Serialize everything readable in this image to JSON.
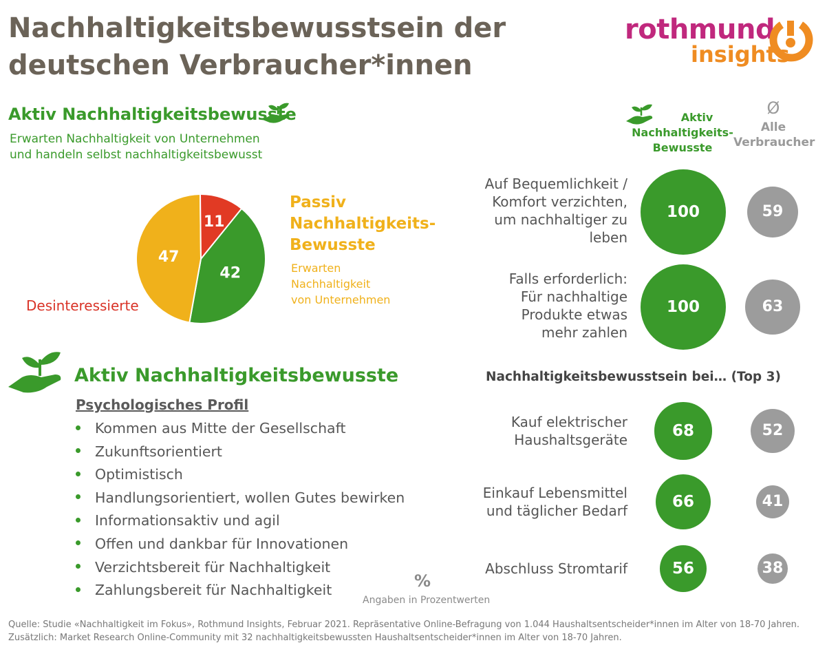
{
  "header": {
    "title_line1": "Nachhaltigkeitsbewusstsein der",
    "title_line2": "deutschen Verbraucher*innen",
    "logo_word1": "rothmund",
    "logo_word2": "insights"
  },
  "segment_active": {
    "title": "Aktiv Nachhaltigkeitsbewusste",
    "desc_line1": "Erwarten Nachhaltigkeit von Unternehmen",
    "desc_line2": "und handeln selbst nachhaltigkeitsbewusst"
  },
  "segment_passive": {
    "title_line1": "Passiv",
    "title_line2": "Nachhaltigkeits-",
    "title_line3": "Bewusste",
    "desc_line1": "Erwarten",
    "desc_line2": "Nachhaltigkeit",
    "desc_line3": "von Unternehmen"
  },
  "segment_disinterested": {
    "title": "Desinteressierte"
  },
  "profile": {
    "title": "Aktiv Nachhaltigkeitsbewusste",
    "subtitle": "Psychologisches Profil",
    "items": [
      "Kommen aus Mitte der Gesellschaft",
      "Zukunftsorientiert",
      "Optimistisch",
      "Handlungsorientiert, wollen Gutes bewirken",
      "Informationsaktiv und agil",
      "Offen und dankbar für Innovationen",
      "Verzichtsbereit für Nachhaltigkeit",
      "Zahlungsbereit für Nachhaltigkeit"
    ]
  },
  "columns": {
    "active_line1": "Aktiv",
    "active_line2": "Nachhaltigkeits-",
    "active_line3": "Bewusste",
    "all_symbol": "Ø",
    "all_line1": "Alle",
    "all_line2": "Verbraucher"
  },
  "top3_title": "Nachhaltigkeitsbewusstsein bei… (Top 3)",
  "units": {
    "symbol": "%",
    "note": "Angaben in Prozentwerten"
  },
  "source": {
    "line1": "Quelle: Studie «Nachhaltigkeit im Fokus», Rothmund Insights, Februar 2021. Repräsentative Online-Befragung von 1.044 Haushaltsentscheider*innen im Alter von 18-70 Jahren.",
    "line2": "Zusätzlich: Market Research Online-Community mit 32 nachhaltigkeitsbewussten Haushaltsentscheider*innen im Alter von 18-70 Jahren."
  },
  "colors": {
    "green": "#3a9a2b",
    "amber": "#f0b11b",
    "red": "#e13a24",
    "grey": "#9c9c9c",
    "title": "#6b6358"
  },
  "chart_data": [
    {
      "type": "pie",
      "categories": [
        "Aktiv Nachhaltigkeitsbewusste",
        "Passiv Nachhaltigkeits-Bewusste",
        "Desinteressierte"
      ],
      "values": [
        42,
        47,
        11
      ],
      "labels": [
        "42",
        "47",
        "11"
      ]
    },
    {
      "type": "bubble",
      "series": [
        {
          "name": "Aktiv Nachhaltigkeits-Bewusste",
          "values": [
            100,
            100
          ]
        },
        {
          "name": "Alle Verbraucher",
          "values": [
            59,
            63
          ]
        }
      ],
      "categories": [
        [
          "Auf Bequemlichkeit /",
          "Komfort verzichten,",
          "um nachhaltiger zu",
          "leben"
        ],
        [
          "Falls erforderlich:",
          "Für nachhaltige",
          "Produkte etwas",
          "mehr zahlen"
        ]
      ]
    },
    {
      "type": "bubble",
      "title": "Nachhaltigkeitsbewusstsein bei… (Top 3)",
      "series": [
        {
          "name": "Aktiv Nachhaltigkeits-Bewusste",
          "values": [
            68,
            66,
            56
          ]
        },
        {
          "name": "Alle Verbraucher",
          "values": [
            52,
            41,
            38
          ]
        }
      ],
      "categories": [
        [
          "Kauf elektrischer",
          "Haushaltsgeräte"
        ],
        [
          "Einkauf Lebensmittel",
          "und täglicher Bedarf"
        ],
        [
          "Abschluss Stromtarif"
        ]
      ]
    }
  ]
}
